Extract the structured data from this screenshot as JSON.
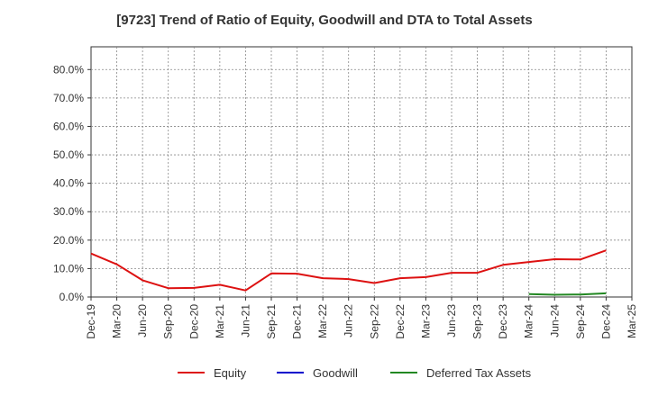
{
  "chart_data": {
    "type": "line",
    "title": "[9723]  Trend of Ratio of Equity, Goodwill and DTA to Total Assets",
    "xlabel": "",
    "ylabel": "",
    "categories": [
      "Dec-19",
      "Mar-20",
      "Jun-20",
      "Sep-20",
      "Dec-20",
      "Mar-21",
      "Jun-21",
      "Sep-21",
      "Dec-21",
      "Mar-22",
      "Jun-22",
      "Sep-22",
      "Dec-22",
      "Mar-23",
      "Jun-23",
      "Sep-23",
      "Dec-23",
      "Mar-24",
      "Jun-24",
      "Sep-24",
      "Dec-24",
      "Mar-25"
    ],
    "y_ticks": [
      "0.0%",
      "10.0%",
      "20.0%",
      "30.0%",
      "40.0%",
      "50.0%",
      "60.0%",
      "70.0%",
      "80.0%"
    ],
    "ylim": [
      0,
      88
    ],
    "grid": true,
    "legend_position": "bottom",
    "series": [
      {
        "name": "Equity",
        "color": "#dd1111",
        "values": [
          15.3,
          11.5,
          5.9,
          3.1,
          3.2,
          4.3,
          2.3,
          8.3,
          8.2,
          6.6,
          6.3,
          4.9,
          6.6,
          7.0,
          8.5,
          8.5,
          11.3,
          12.3,
          13.3,
          13.2,
          16.4,
          null
        ]
      },
      {
        "name": "Goodwill",
        "color": "#0000cc",
        "values": [
          null,
          null,
          null,
          null,
          null,
          null,
          null,
          null,
          null,
          null,
          null,
          null,
          null,
          null,
          null,
          null,
          null,
          null,
          null,
          null,
          null,
          null
        ]
      },
      {
        "name": "Deferred Tax Assets",
        "color": "#228822",
        "values": [
          null,
          null,
          null,
          null,
          null,
          null,
          null,
          null,
          null,
          null,
          null,
          null,
          null,
          null,
          null,
          null,
          null,
          1.0,
          0.8,
          0.9,
          1.3,
          null
        ]
      }
    ]
  }
}
